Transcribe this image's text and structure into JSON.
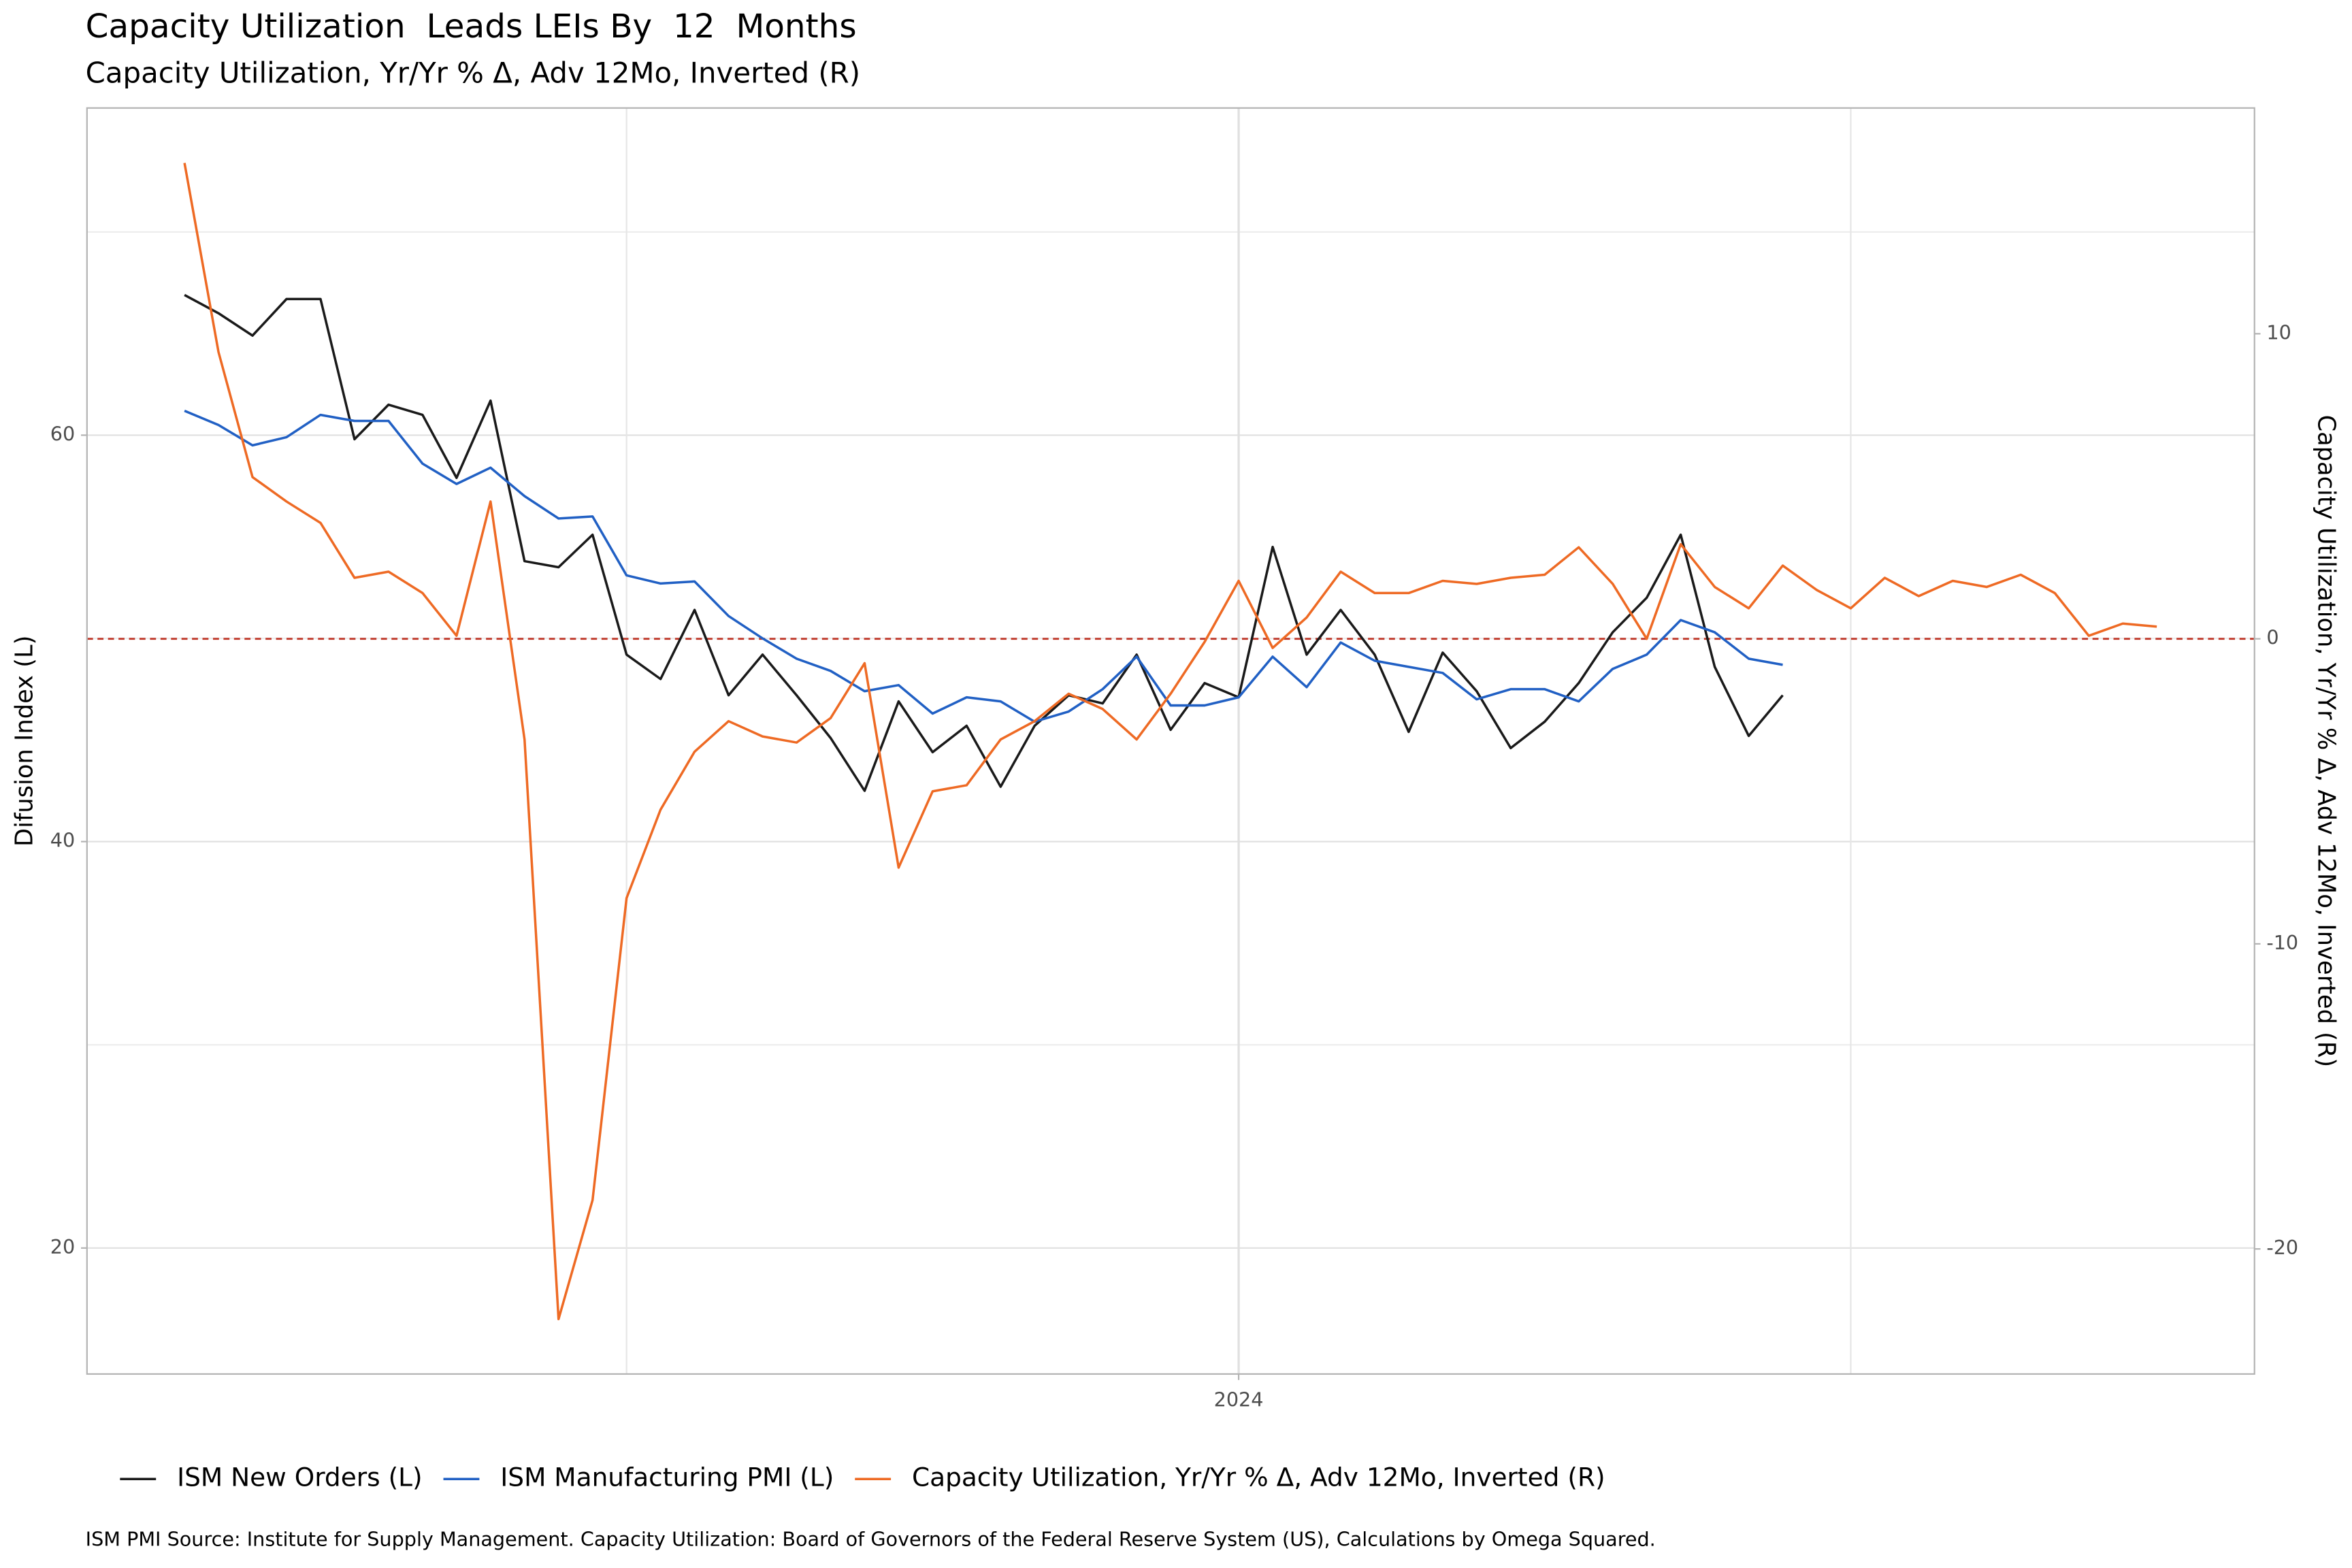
{
  "chart_data": {
    "type": "line",
    "title": "Capacity Utilization  Leads LEIs By  12  Months",
    "subtitle": "Capacity Utilization, Yr/Yr % Δ, Adv 12Mo, Inverted (R)",
    "ylabel": "Difusion Index (L)",
    "y2label": "Capacity Utilization, Yr/Yr % Δ, Adv 12Mo, Inverted (R)",
    "caption": "ISM PMI Source: Institute for Supply Management. Capacity Utilization: Board of Governors of the Federal Reserve System (US), Calculations by Omega Squared.",
    "categories": [
      null,
      null,
      null,
      null,
      null,
      null,
      null,
      null,
      null,
      null,
      null,
      null,
      null,
      null,
      null,
      null,
      null,
      null,
      null,
      null,
      null,
      null,
      null,
      null,
      null,
      null,
      null,
      null,
      null,
      null,
      null,
      "2024",
      null,
      null,
      null,
      null,
      null,
      null,
      null,
      null,
      null,
      null,
      null,
      null,
      null,
      null,
      null,
      null,
      null,
      null,
      null,
      null,
      null,
      null,
      null,
      null,
      null,
      null,
      null
    ],
    "ylim": [
      13.8,
      76.1
    ],
    "yticks": [
      20,
      40,
      60
    ],
    "yminor": [
      30,
      50,
      70
    ],
    "y2lim": [
      -24.1,
      17.4
    ],
    "y2ticks": [
      -20,
      -10,
      0,
      10
    ],
    "reference_line": {
      "value": 0,
      "axis": "y2",
      "color": "#c0392b"
    },
    "grid": true,
    "legend": "bottom",
    "series": [
      {
        "name": "ISM New Orders (L)",
        "color": "#1a1a1a",
        "axis": "y",
        "values": [
          66.9,
          66.0,
          64.9,
          66.7,
          66.7,
          59.8,
          61.5,
          61.0,
          57.9,
          61.7,
          53.8,
          53.5,
          55.1,
          49.2,
          48.0,
          51.4,
          47.2,
          49.2,
          47.2,
          45.1,
          42.5,
          46.9,
          44.4,
          45.7,
          42.7,
          45.7,
          47.2,
          46.8,
          49.2,
          45.5,
          47.8,
          47.1,
          54.5,
          49.2,
          51.4,
          49.2,
          45.4,
          49.3,
          47.4,
          44.6,
          45.9,
          47.8,
          50.3,
          52.0,
          55.1,
          48.6,
          45.2,
          47.2,
          null,
          null,
          null,
          null,
          null,
          null,
          null,
          null,
          null,
          null,
          null
        ]
      },
      {
        "name": "ISM Manufacturing PMI (L)",
        "color": "#2160c4",
        "axis": "y",
        "values": [
          61.2,
          60.5,
          59.5,
          59.9,
          61.0,
          60.7,
          60.7,
          58.6,
          57.6,
          58.4,
          57.0,
          55.9,
          56.0,
          53.1,
          52.7,
          52.8,
          51.1,
          50.0,
          49.0,
          48.4,
          47.4,
          47.7,
          46.3,
          47.1,
          46.9,
          45.9,
          46.4,
          47.5,
          49.1,
          46.7,
          46.7,
          47.1,
          49.1,
          47.6,
          49.8,
          48.9,
          48.6,
          48.3,
          47.0,
          47.5,
          47.5,
          46.9,
          48.5,
          49.2,
          50.9,
          50.3,
          49.0,
          48.7,
          null,
          null,
          null,
          null,
          null,
          null,
          null,
          null,
          null,
          null,
          null
        ]
      },
      {
        "name": "Capacity Utilization, Yr/Yr % Δ, Adv 12Mo, Inverted (R)",
        "color": "#ee6a24",
        "axis": "y2",
        "values": [
          15.6,
          9.4,
          5.3,
          4.5,
          3.8,
          2.0,
          2.2,
          1.5,
          0.1,
          4.5,
          -3.3,
          -22.3,
          -18.4,
          -8.5,
          -5.6,
          -3.7,
          -2.7,
          -3.2,
          -3.4,
          -2.6,
          -0.8,
          -7.5,
          -5.0,
          -4.8,
          -3.3,
          -2.7,
          -1.8,
          -2.3,
          -3.3,
          -1.8,
          -0.1,
          1.9,
          -0.3,
          0.7,
          2.2,
          1.5,
          1.5,
          1.9,
          1.8,
          2.0,
          2.1,
          3.0,
          1.8,
          0.0,
          3.1,
          1.7,
          1.0,
          2.4,
          1.6,
          1.0,
          2.0,
          1.4,
          1.9,
          1.7,
          2.1,
          1.5,
          0.1,
          0.5,
          0.4
        ]
      }
    ]
  }
}
